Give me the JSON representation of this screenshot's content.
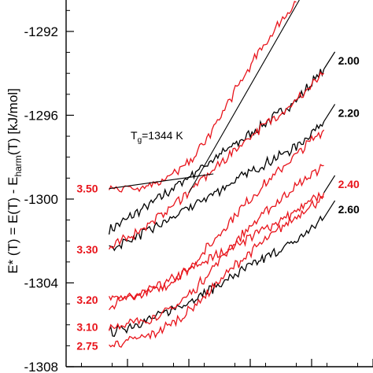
{
  "chart_data": {
    "type": "line",
    "ylabel_parts": [
      "E* (T) = E(T) - E",
      "harm",
      "(T)  [kJ/mol]"
    ],
    "ylim": [
      -1308,
      -1290.5
    ],
    "y_ticks": [
      -1292,
      -1296,
      -1300,
      -1304,
      -1308
    ],
    "y_tick_labels": [
      "-1292",
      "-1296",
      "-1300",
      "-1304",
      "-1308"
    ],
    "x_ticks": [
      0.2,
      0.4,
      0.6,
      0.8,
      1.0
    ],
    "xlim": [
      0,
      1
    ],
    "annotation": {
      "text_main": "T",
      "text_sub": "g",
      "text_rest": "=1344 K"
    },
    "colors": {
      "red": "#e8141b",
      "black": "#000000"
    },
    "series": [
      {
        "name": "2.00",
        "color": "black",
        "label_side": "right",
        "points": [
          [
            0.14,
            -1301.5
          ],
          [
            0.3,
            -1300.0
          ],
          [
            0.45,
            -1298.4
          ],
          [
            0.6,
            -1296.9
          ],
          [
            0.75,
            -1295.3
          ],
          [
            0.84,
            -1293.8
          ]
        ]
      },
      {
        "name": "2.20",
        "color": "black",
        "label_side": "right",
        "points": [
          [
            0.14,
            -1302.4
          ],
          [
            0.3,
            -1301.3
          ],
          [
            0.45,
            -1300.0
          ],
          [
            0.6,
            -1298.7
          ],
          [
            0.75,
            -1297.5
          ],
          [
            0.84,
            -1296.3
          ]
        ]
      },
      {
        "name": "2.40",
        "color": "red",
        "label_side": "right",
        "points": [
          [
            0.14,
            -1305.1
          ],
          [
            0.3,
            -1304.2
          ],
          [
            0.45,
            -1303.0
          ],
          [
            0.6,
            -1301.8
          ],
          [
            0.75,
            -1300.6
          ],
          [
            0.84,
            -1299.7
          ]
        ]
      },
      {
        "name": "2.60",
        "color": "black",
        "label_side": "right",
        "points": [
          [
            0.14,
            -1306.4
          ],
          [
            0.3,
            -1305.6
          ],
          [
            0.45,
            -1304.5
          ],
          [
            0.6,
            -1303.2
          ],
          [
            0.75,
            -1302.0
          ],
          [
            0.84,
            -1300.9
          ]
        ]
      },
      {
        "name": "3.50",
        "color": "red",
        "label_side": "left",
        "points": [
          [
            0.14,
            -1299.5
          ],
          [
            0.25,
            -1299.4
          ],
          [
            0.33,
            -1299.0
          ],
          [
            0.4,
            -1298.3
          ],
          [
            0.47,
            -1296.9
          ],
          [
            0.54,
            -1295.1
          ],
          [
            0.62,
            -1293.2
          ],
          [
            0.7,
            -1291.5
          ],
          [
            0.75,
            -1290.6
          ]
        ]
      },
      {
        "name": "3.30",
        "color": "red",
        "label_side": "left",
        "points": [
          [
            0.14,
            -1302.4
          ],
          [
            0.3,
            -1300.9
          ],
          [
            0.45,
            -1299.0
          ],
          [
            0.6,
            -1297.0
          ],
          [
            0.75,
            -1295.3
          ],
          [
            0.84,
            -1294.0
          ]
        ]
      },
      {
        "name": "3.20",
        "color": "red",
        "label_side": "left",
        "points": [
          [
            0.14,
            -1304.8
          ],
          [
            0.24,
            -1304.6
          ],
          [
            0.32,
            -1304.2
          ],
          [
            0.4,
            -1303.3
          ],
          [
            0.48,
            -1302.0
          ],
          [
            0.56,
            -1300.6
          ],
          [
            0.64,
            -1299.4
          ],
          [
            0.72,
            -1298.3
          ],
          [
            0.8,
            -1297.2
          ],
          [
            0.84,
            -1296.7
          ]
        ]
      },
      {
        "name": "3.10",
        "color": "red",
        "label_side": "left",
        "points": [
          [
            0.14,
            -1306.1
          ],
          [
            0.26,
            -1305.8
          ],
          [
            0.34,
            -1305.3
          ],
          [
            0.42,
            -1304.3
          ],
          [
            0.5,
            -1302.9
          ],
          [
            0.58,
            -1301.6
          ],
          [
            0.66,
            -1300.5
          ],
          [
            0.74,
            -1299.5
          ],
          [
            0.84,
            -1298.4
          ]
        ]
      },
      {
        "name": "2.75",
        "color": "red",
        "label_side": "left",
        "points": [
          [
            0.14,
            -1307.0
          ],
          [
            0.28,
            -1306.5
          ],
          [
            0.38,
            -1305.6
          ],
          [
            0.46,
            -1304.5
          ],
          [
            0.54,
            -1303.3
          ],
          [
            0.62,
            -1302.3
          ],
          [
            0.7,
            -1301.4
          ],
          [
            0.78,
            -1300.5
          ],
          [
            0.84,
            -1299.9
          ]
        ]
      }
    ],
    "fit_lines": [
      {
        "points": [
          [
            0.14,
            -1299.5
          ],
          [
            0.48,
            -1298.8
          ]
        ]
      },
      {
        "points": [
          [
            0.4,
            -1299.7
          ],
          [
            0.76,
            -1290.5
          ]
        ]
      }
    ]
  }
}
